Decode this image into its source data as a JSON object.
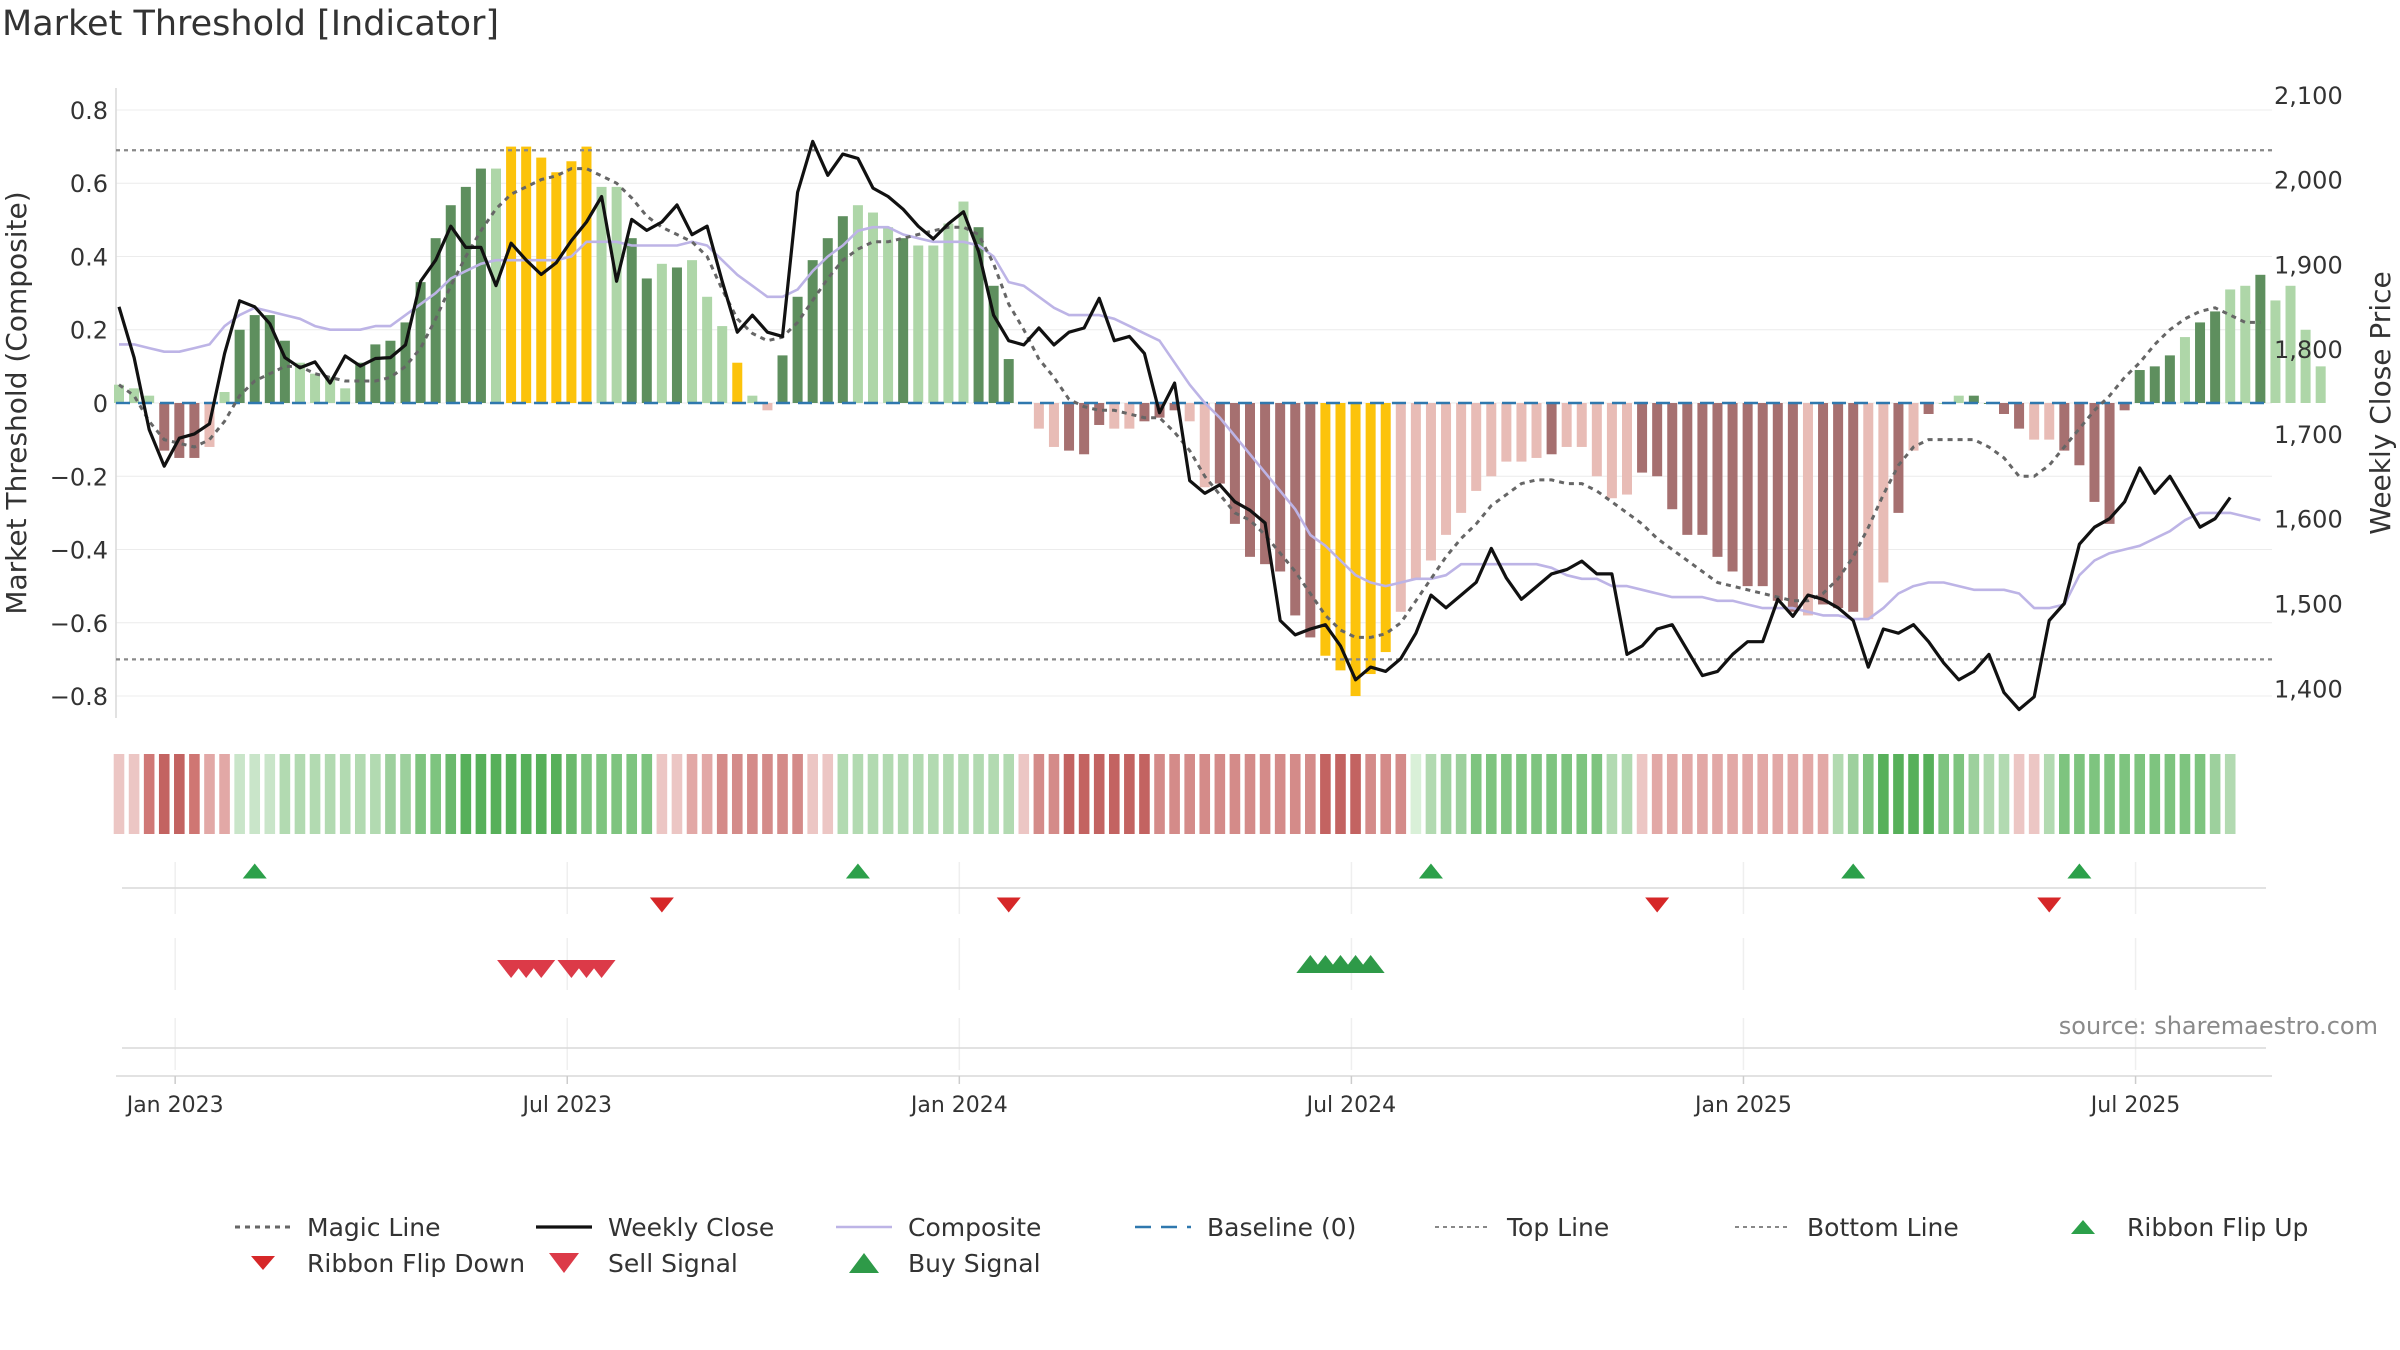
{
  "chart_data": {
    "type": "bar",
    "title": "Market Threshold [Indicator]",
    "source": "source: sharemaestro.com",
    "ylabel": "Market Threshold (Composite)",
    "ylabel_right": "Weekly Close Price",
    "ylim": [
      -0.86,
      0.86
    ],
    "ylim_right": [
      1365,
      2108
    ],
    "yticks": [
      {
        "v": 0.8,
        "t": "0.8"
      },
      {
        "v": 0.6,
        "t": "0.6"
      },
      {
        "v": 0.4,
        "t": "0.4"
      },
      {
        "v": 0.2,
        "t": "0.2"
      },
      {
        "v": 0,
        "t": "0"
      },
      {
        "v": -0.2,
        "t": "−0.2"
      },
      {
        "v": -0.4,
        "t": "−0.4"
      },
      {
        "v": -0.6,
        "t": "−0.6"
      },
      {
        "v": -0.8,
        "t": "−0.8"
      }
    ],
    "yticks_right": [
      {
        "v": 2100,
        "t": "2,100"
      },
      {
        "v": 2000,
        "t": "2,000"
      },
      {
        "v": 1900,
        "t": "1,900"
      },
      {
        "v": 1800,
        "t": "1,800"
      },
      {
        "v": 1700,
        "t": "1,700"
      },
      {
        "v": 1600,
        "t": "1,600"
      },
      {
        "v": 1500,
        "t": "1,500"
      },
      {
        "v": 1400,
        "t": "1,400"
      }
    ],
    "xticks": [
      {
        "week": 2,
        "t": "Jan 2023"
      },
      {
        "week": 28,
        "t": "Jul 2023"
      },
      {
        "week": 54,
        "t": "Jan 2024"
      },
      {
        "week": 80,
        "t": "Jul 2024"
      },
      {
        "week": 106,
        "t": "Jan 2025"
      },
      {
        "week": 132,
        "t": "Jul 2025"
      }
    ],
    "weeks": 143,
    "top_line": 0.69,
    "bottom_line": -0.7,
    "baseline": 0,
    "bar_colors": {
      "strong_up": "#5e8f5e",
      "weak_up": "#aed6a8",
      "strong_down": "#a67070",
      "weak_down": "#e8bcb6",
      "extreme": "#fcc30b"
    },
    "composite_bars": [
      0.05,
      0.04,
      0.02,
      -0.13,
      -0.15,
      -0.15,
      -0.12,
      0.03,
      0.2,
      0.24,
      0.24,
      0.17,
      0.11,
      0.08,
      0.07,
      0.04,
      0.11,
      0.16,
      0.17,
      0.22,
      0.33,
      0.45,
      0.54,
      0.59,
      0.64,
      0.64,
      0.7,
      0.7,
      0.67,
      0.63,
      0.66,
      0.7,
      0.59,
      0.59,
      0.45,
      0.34,
      0.38,
      0.37,
      0.39,
      0.29,
      0.21,
      0.11,
      0.02,
      -0.02,
      0.13,
      0.29,
      0.39,
      0.45,
      0.51,
      0.54,
      0.52,
      0.48,
      0.45,
      0.43,
      0.43,
      0.49,
      0.55,
      0.48,
      0.32,
      0.12,
      0.0,
      -0.07,
      -0.12,
      -0.13,
      -0.14,
      -0.06,
      -0.07,
      -0.07,
      -0.05,
      -0.04,
      -0.02,
      -0.05,
      -0.23,
      -0.22,
      -0.33,
      -0.42,
      -0.44,
      -0.46,
      -0.58,
      -0.64,
      -0.69,
      -0.73,
      -0.8,
      -0.74,
      -0.68,
      -0.57,
      -0.48,
      -0.43,
      -0.36,
      -0.3,
      -0.24,
      -0.2,
      -0.16,
      -0.16,
      -0.15,
      -0.14,
      -0.12,
      -0.12,
      -0.2,
      -0.26,
      -0.25,
      -0.19,
      -0.2,
      -0.29,
      -0.36,
      -0.36,
      -0.42,
      -0.46,
      -0.5,
      -0.5,
      -0.54,
      -0.57,
      -0.58,
      -0.55,
      -0.56,
      -0.57,
      -0.59,
      -0.49,
      -0.3,
      -0.13,
      -0.03,
      0.0,
      0.02,
      0.02,
      0.0,
      -0.03,
      -0.07,
      -0.1,
      -0.1,
      -0.13,
      -0.17,
      -0.27,
      -0.33,
      -0.02,
      0.09,
      0.1,
      0.13,
      0.18,
      0.22,
      0.25,
      0.31,
      0.32,
      0.35,
      0.28,
      0.32,
      0.2,
      0.1
    ],
    "bar_classes": "wwwssswwsssswwwwssssssssswxxxxxxwwsswswwwxwwssssswwwswwwwsssswwssswwssswwsssssssxxxxxwwwwwwwwwwswwwwwssssssssssswssswwswswwsssswwsssssssswsswws",
    "weekly_close": [
      1850,
      1790,
      1705,
      1662,
      1695,
      1700,
      1712,
      1795,
      1857,
      1850,
      1830,
      1790,
      1778,
      1785,
      1760,
      1792,
      1780,
      1789,
      1790,
      1805,
      1880,
      1905,
      1945,
      1920,
      1920,
      1875,
      1925,
      1905,
      1888,
      1902,
      1928,
      1950,
      1980,
      1880,
      1953,
      1940,
      1950,
      1970,
      1935,
      1945,
      1880,
      1820,
      1840,
      1820,
      1815,
      1985,
      2045,
      2005,
      2030,
      2025,
      1990,
      1980,
      1965,
      1945,
      1930,
      1948,
      1962,
      1915,
      1840,
      1810,
      1805,
      1825,
      1805,
      1820,
      1825,
      1860,
      1810,
      1815,
      1795,
      1725,
      1760,
      1645,
      1630,
      1640,
      1620,
      1610,
      1595,
      1480,
      1463,
      1470,
      1475,
      1450,
      1410,
      1425,
      1420,
      1435,
      1465,
      1510,
      1495,
      1510,
      1525,
      1565,
      1530,
      1505,
      1520,
      1535,
      1540,
      1550,
      1535,
      1535,
      1440,
      1450,
      1470,
      1475,
      1445,
      1415,
      1420,
      1440,
      1455,
      1455,
      1505,
      1485,
      1510,
      1505,
      1495,
      1480,
      1425,
      1470,
      1465,
      1475,
      1455,
      1430,
      1410,
      1420,
      1440,
      1395,
      1375,
      1390,
      1480,
      1500,
      1570,
      1590,
      1600,
      1620,
      1660,
      1630,
      1650,
      1620,
      1590,
      1600,
      1625
    ],
    "composite_line": [
      0.16,
      0.16,
      0.15,
      0.14,
      0.14,
      0.15,
      0.16,
      0.21,
      0.24,
      0.26,
      0.25,
      0.24,
      0.23,
      0.21,
      0.2,
      0.2,
      0.2,
      0.21,
      0.21,
      0.24,
      0.27,
      0.3,
      0.34,
      0.36,
      0.38,
      0.39,
      0.39,
      0.39,
      0.39,
      0.39,
      0.4,
      0.44,
      0.44,
      0.44,
      0.43,
      0.43,
      0.43,
      0.43,
      0.44,
      0.43,
      0.39,
      0.35,
      0.32,
      0.29,
      0.29,
      0.31,
      0.36,
      0.4,
      0.43,
      0.47,
      0.48,
      0.48,
      0.46,
      0.45,
      0.44,
      0.44,
      0.44,
      0.43,
      0.4,
      0.33,
      0.32,
      0.29,
      0.26,
      0.24,
      0.24,
      0.24,
      0.23,
      0.21,
      0.19,
      0.17,
      0.11,
      0.05,
      0.0,
      -0.04,
      -0.09,
      -0.14,
      -0.19,
      -0.24,
      -0.29,
      -0.36,
      -0.39,
      -0.43,
      -0.47,
      -0.49,
      -0.5,
      -0.49,
      -0.48,
      -0.48,
      -0.47,
      -0.44,
      -0.44,
      -0.44,
      -0.44,
      -0.44,
      -0.44,
      -0.45,
      -0.47,
      -0.48,
      -0.48,
      -0.5,
      -0.5,
      -0.51,
      -0.52,
      -0.53,
      -0.53,
      -0.53,
      -0.54,
      -0.54,
      -0.55,
      -0.56,
      -0.56,
      -0.56,
      -0.57,
      -0.58,
      -0.58,
      -0.59,
      -0.59,
      -0.56,
      -0.52,
      -0.5,
      -0.49,
      -0.49,
      -0.5,
      -0.51,
      -0.51,
      -0.51,
      -0.52,
      -0.56,
      -0.56,
      -0.55,
      -0.47,
      -0.43,
      -0.41,
      -0.4,
      -0.39,
      -0.37,
      -0.35,
      -0.32,
      -0.3,
      -0.3,
      -0.3,
      -0.31,
      -0.32
    ],
    "magic_line": [
      0.05,
      0.02,
      -0.05,
      -0.1,
      -0.11,
      -0.12,
      -0.1,
      -0.05,
      0.02,
      0.06,
      0.08,
      0.1,
      0.1,
      0.08,
      0.07,
      0.06,
      0.06,
      0.06,
      0.07,
      0.1,
      0.15,
      0.23,
      0.32,
      0.4,
      0.47,
      0.53,
      0.57,
      0.59,
      0.61,
      0.62,
      0.64,
      0.64,
      0.62,
      0.6,
      0.56,
      0.51,
      0.48,
      0.46,
      0.44,
      0.4,
      0.31,
      0.23,
      0.19,
      0.17,
      0.18,
      0.22,
      0.28,
      0.34,
      0.39,
      0.42,
      0.44,
      0.44,
      0.45,
      0.46,
      0.47,
      0.48,
      0.48,
      0.46,
      0.38,
      0.27,
      0.2,
      0.12,
      0.07,
      0.01,
      -0.01,
      -0.02,
      -0.02,
      -0.03,
      -0.04,
      -0.04,
      -0.08,
      -0.13,
      -0.2,
      -0.25,
      -0.3,
      -0.32,
      -0.36,
      -0.41,
      -0.46,
      -0.52,
      -0.58,
      -0.62,
      -0.64,
      -0.64,
      -0.63,
      -0.6,
      -0.54,
      -0.48,
      -0.42,
      -0.37,
      -0.33,
      -0.28,
      -0.25,
      -0.22,
      -0.21,
      -0.21,
      -0.22,
      -0.22,
      -0.24,
      -0.27,
      -0.3,
      -0.33,
      -0.37,
      -0.4,
      -0.43,
      -0.46,
      -0.49,
      -0.5,
      -0.51,
      -0.52,
      -0.53,
      -0.54,
      -0.54,
      -0.52,
      -0.48,
      -0.42,
      -0.34,
      -0.25,
      -0.17,
      -0.12,
      -0.1,
      -0.1,
      -0.1,
      -0.1,
      -0.12,
      -0.15,
      -0.2,
      -0.2,
      -0.17,
      -0.12,
      -0.07,
      -0.02,
      0.02,
      0.07,
      0.11,
      0.16,
      0.2,
      0.23,
      0.25,
      0.26,
      0.24,
      0.22,
      0.22
    ],
    "ribbon_colors": [
      "#ecc6c4",
      "#ecc6c4",
      "#d07876",
      "#c36361",
      "#c36361",
      "#cf7673",
      "#e2a8a6",
      "#e2a8a6",
      "#c9e5c9",
      "#c9e5c9",
      "#c9e5c9",
      "#b2dab1",
      "#b2dab1",
      "#b2dab1",
      "#b2dab1",
      "#b2dab1",
      "#b2dab1",
      "#b2dab1",
      "#9dd09d",
      "#9dd09d",
      "#7ec47f",
      "#7ec47f",
      "#6ab96c",
      "#57b05a",
      "#57b05a",
      "#57b05a",
      "#57b05a",
      "#57b05a",
      "#57b05a",
      "#57b05a",
      "#6ab96c",
      "#7ec47f",
      "#7ec47f",
      "#7ec47f",
      "#7ec47f",
      "#7ec47f",
      "#ecc6c4",
      "#ecc6c4",
      "#e2a8a6",
      "#e2a8a6",
      "#d48b89",
      "#d48b89",
      "#d48b89",
      "#d48b89",
      "#d48b89",
      "#d48b89",
      "#ecc6c4",
      "#ecc6c4",
      "#b2dab1",
      "#b2dab1",
      "#b2dab1",
      "#b2dab1",
      "#b2dab1",
      "#b2dab1",
      "#b2dab1",
      "#b2dab1",
      "#b2dab1",
      "#b2dab1",
      "#b2dab1",
      "#b2dab1",
      "#ecc6c4",
      "#d48b89",
      "#d48b89",
      "#c36361",
      "#c36361",
      "#c36361",
      "#c36361",
      "#c36361",
      "#c36361",
      "#d48b89",
      "#d48b89",
      "#d48b89",
      "#d48b89",
      "#d48b89",
      "#d48b89",
      "#d48b89",
      "#d48b89",
      "#d48b89",
      "#d48b89",
      "#d48b89",
      "#c36361",
      "#c36361",
      "#c36361",
      "#d48b89",
      "#d48b89",
      "#d48b89",
      "#d9f0d8",
      "#b2dab1",
      "#9dd09d",
      "#9dd09d",
      "#7ec47f",
      "#7ec47f",
      "#7ec47f",
      "#7ec47f",
      "#7ec47f",
      "#7ec47f",
      "#7ec47f",
      "#7ec47f",
      "#7ec47f",
      "#b2dab1",
      "#b2dab1",
      "#ecc6c4",
      "#e2a8a6",
      "#e2a8a6",
      "#e2a8a6",
      "#e2a8a6",
      "#e2a8a6",
      "#e2a8a6",
      "#e2a8a6",
      "#e2a8a6",
      "#e2a8a6",
      "#e2a8a6",
      "#e2a8a6",
      "#e2a8a6",
      "#b2dab1",
      "#9dd09d",
      "#7ec47f",
      "#57b05a",
      "#57b05a",
      "#57b05a",
      "#57b05a",
      "#7ec47f",
      "#7ec47f",
      "#9dd09d",
      "#b2dab1",
      "#b2dab1",
      "#ecc6c4",
      "#ecc6c4",
      "#b2dab1",
      "#7ec47f",
      "#7ec47f",
      "#7ec47f",
      "#7ec47f",
      "#7ec47f",
      "#7ec47f",
      "#7ec47f",
      "#7ec47f",
      "#7ec47f",
      "#7ec47f",
      "#9dd09d",
      "#b2dab1"
    ],
    "ribbon_flip_up": [
      9,
      49,
      87,
      115,
      130
    ],
    "ribbon_flip_down": [
      36,
      59,
      102,
      128
    ],
    "sell_signals": [
      26,
      27,
      28,
      30,
      31,
      32
    ],
    "buy_signals": [
      79,
      80,
      81,
      82,
      83
    ],
    "legend": [
      {
        "label": "Magic Line",
        "kind": "dotted",
        "color": "#666666"
      },
      {
        "label": "Weekly Close",
        "kind": "solid",
        "color": "#111111"
      },
      {
        "label": "Composite",
        "kind": "solid-thin",
        "color": "#bdb4e6"
      },
      {
        "label": "Baseline (0)",
        "kind": "dashed",
        "color": "#2f78ae"
      },
      {
        "label": "Top Line",
        "kind": "dotted-light",
        "color": "#888888"
      },
      {
        "label": "Bottom Line",
        "kind": "dotted-light",
        "color": "#888888"
      },
      {
        "label": "Ribbon Flip Up",
        "kind": "tri-up-small",
        "color": "#2ca04a"
      },
      {
        "label": "Ribbon Flip Down",
        "kind": "tri-down-small",
        "color": "#d62728"
      },
      {
        "label": "Sell Signal",
        "kind": "tri-down",
        "color": "#dc3a48"
      },
      {
        "label": "Buy Signal",
        "kind": "tri-up",
        "color": "#2e9a48"
      }
    ]
  }
}
